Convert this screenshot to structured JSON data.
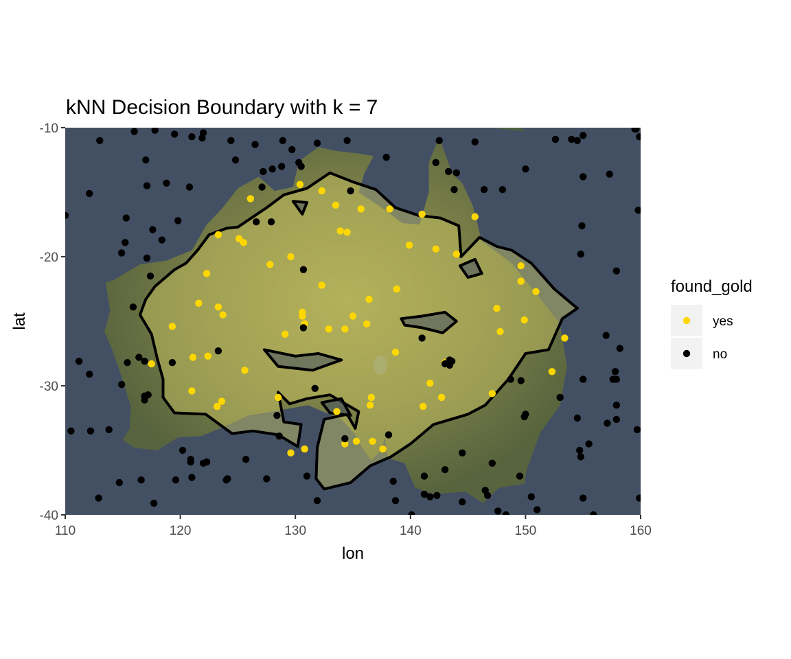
{
  "chart_data": {
    "type": "scatter",
    "title": "kNN Decision Boundary with k = 7",
    "xlabel": "lon",
    "ylabel": "lat",
    "xlim": [
      110,
      160
    ],
    "ylim": [
      -40,
      -10
    ],
    "xticks": [
      "110",
      "120",
      "130",
      "140",
      "150",
      "160"
    ],
    "yticks": [
      "-10",
      "-20",
      "-30",
      "-40"
    ],
    "legend": {
      "title": "found_gold",
      "position": "right",
      "entries": [
        {
          "label": "yes",
          "color": "#FFD700"
        },
        {
          "label": "no",
          "color": "#000000"
        }
      ]
    },
    "background_map": "satellite basemap of Australia",
    "colors": {
      "yes": "#FFD700",
      "no": "#000000",
      "ocean": "#435063",
      "boundary": "#000000"
    },
    "decision_boundary": [
      [
        125.0,
        -17.7
      ],
      [
        127.5,
        -16.2
      ],
      [
        129.0,
        -15.2
      ],
      [
        131.0,
        -14.7
      ],
      [
        133.0,
        -13.5
      ],
      [
        135.0,
        -14.2
      ],
      [
        137.0,
        -14.8
      ],
      [
        138.7,
        -16.2
      ],
      [
        140.7,
        -16.8
      ],
      [
        142.6,
        -17.0
      ],
      [
        144.2,
        -17.6
      ],
      [
        144.4,
        -20.0
      ],
      [
        146.0,
        -18.5
      ],
      [
        147.5,
        -19.2
      ],
      [
        148.8,
        -19.5
      ],
      [
        150.5,
        -20.5
      ],
      [
        152.5,
        -22.5
      ],
      [
        154.5,
        -24.0
      ],
      [
        153.2,
        -24.8
      ],
      [
        152.0,
        -27.2
      ],
      [
        150.0,
        -27.5
      ],
      [
        148.5,
        -29.5
      ],
      [
        146.5,
        -31.5
      ],
      [
        145.0,
        -32.2
      ],
      [
        143.5,
        -32.6
      ],
      [
        142.0,
        -33.0
      ],
      [
        140.0,
        -34.5
      ],
      [
        138.3,
        -35.5
      ],
      [
        136.5,
        -36.2
      ],
      [
        134.8,
        -37.5
      ],
      [
        132.5,
        -38.0
      ],
      [
        131.8,
        -37.2
      ],
      [
        131.9,
        -34.8
      ],
      [
        132.5,
        -32.6
      ],
      [
        134.5,
        -32.2
      ],
      [
        135.2,
        -33.3
      ],
      [
        135.5,
        -32.0
      ],
      [
        133.0,
        -30.7
      ],
      [
        131.0,
        -31.0
      ],
      [
        129.5,
        -31.4
      ],
      [
        128.5,
        -30.5
      ],
      [
        129.0,
        -32.8
      ],
      [
        130.5,
        -33.0
      ],
      [
        130.2,
        -34.7
      ],
      [
        128.5,
        -33.8
      ],
      [
        126.3,
        -33.5
      ],
      [
        124.5,
        -33.7
      ],
      [
        122.2,
        -32.2
      ],
      [
        119.5,
        -32.1
      ],
      [
        118.5,
        -30.9
      ],
      [
        118.5,
        -29.5
      ],
      [
        118.0,
        -27.9
      ],
      [
        117.5,
        -26.0
      ],
      [
        116.5,
        -24.5
      ],
      [
        117.0,
        -23.3
      ],
      [
        117.8,
        -22.3
      ],
      [
        119.5,
        -21.0
      ],
      [
        120.5,
        -20.5
      ],
      [
        121.5,
        -19.5
      ],
      [
        122.5,
        -18.3
      ],
      [
        124.0,
        -17.8
      ],
      [
        125.0,
        -17.7
      ]
    ],
    "boundary_islands": [
      [
        [
          139.2,
          -24.8
        ],
        [
          141.0,
          -24.6
        ],
        [
          143.0,
          -24.3
        ],
        [
          144.0,
          -25.0
        ],
        [
          142.8,
          -25.9
        ],
        [
          141.0,
          -25.5
        ],
        [
          139.5,
          -25.3
        ],
        [
          139.2,
          -24.8
        ]
      ],
      [
        [
          127.3,
          -27.2
        ],
        [
          130.0,
          -27.7
        ],
        [
          132.0,
          -27.5
        ],
        [
          134.0,
          -28.0
        ],
        [
          131.5,
          -28.8
        ],
        [
          128.5,
          -28.5
        ],
        [
          127.3,
          -27.2
        ]
      ],
      [
        [
          144.3,
          -20.7
        ],
        [
          145.6,
          -20.2
        ],
        [
          146.2,
          -21.3
        ],
        [
          145.0,
          -21.6
        ],
        [
          144.3,
          -20.7
        ]
      ],
      [
        [
          129.8,
          -15.7
        ],
        [
          131.0,
          -15.8
        ],
        [
          130.6,
          -16.7
        ],
        [
          129.8,
          -15.7
        ]
      ],
      [
        [
          132.3,
          -31.3
        ],
        [
          134.0,
          -31.0
        ],
        [
          134.8,
          -32.3
        ],
        [
          133.0,
          -32.1
        ],
        [
          132.3,
          -31.3
        ]
      ]
    ],
    "series": [
      {
        "name": "yes",
        "points": [
          [
            126.1,
            -15.5
          ],
          [
            130.4,
            -14.4
          ],
          [
            132.3,
            -14.9
          ],
          [
            133.5,
            -16.0
          ],
          [
            135.7,
            -16.3
          ],
          [
            138.2,
            -16.3
          ],
          [
            141.0,
            -16.7
          ],
          [
            145.6,
            -16.9
          ],
          [
            123.3,
            -18.3
          ],
          [
            125.1,
            -18.6
          ],
          [
            125.5,
            -18.9
          ],
          [
            133.9,
            -18.0
          ],
          [
            134.5,
            -18.1
          ],
          [
            139.9,
            -19.1
          ],
          [
            142.2,
            -19.4
          ],
          [
            144.0,
            -19.8
          ],
          [
            129.6,
            -20.0
          ],
          [
            127.8,
            -20.6
          ],
          [
            122.3,
            -21.3
          ],
          [
            149.6,
            -20.7
          ],
          [
            149.6,
            -21.9
          ],
          [
            150.9,
            -22.7
          ],
          [
            132.3,
            -22.2
          ],
          [
            136.4,
            -23.3
          ],
          [
            138.8,
            -22.5
          ],
          [
            121.6,
            -23.6
          ],
          [
            123.3,
            -23.9
          ],
          [
            123.7,
            -24.5
          ],
          [
            130.6,
            -24.3
          ],
          [
            130.6,
            -24.6
          ],
          [
            135.0,
            -24.6
          ],
          [
            147.5,
            -24.0
          ],
          [
            149.9,
            -24.9
          ],
          [
            119.3,
            -25.4
          ],
          [
            130.8,
            -25.2
          ],
          [
            132.9,
            -25.6
          ],
          [
            134.3,
            -25.6
          ],
          [
            136.2,
            -25.2
          ],
          [
            147.8,
            -25.8
          ],
          [
            129.1,
            -26.0
          ],
          [
            153.4,
            -26.3
          ],
          [
            138.7,
            -27.4
          ],
          [
            121.1,
            -27.8
          ],
          [
            122.4,
            -27.7
          ],
          [
            117.5,
            -28.3
          ],
          [
            125.6,
            -28.8
          ],
          [
            143.0,
            -28.2
          ],
          [
            143.3,
            -28.2
          ],
          [
            152.3,
            -28.9
          ],
          [
            141.7,
            -29.8
          ],
          [
            121.0,
            -30.4
          ],
          [
            128.5,
            -30.9
          ],
          [
            136.6,
            -30.9
          ],
          [
            142.7,
            -30.9
          ],
          [
            147.1,
            -30.6
          ],
          [
            123.6,
            -31.2
          ],
          [
            123.2,
            -31.6
          ],
          [
            136.5,
            -31.5
          ],
          [
            141.1,
            -31.6
          ],
          [
            133.6,
            -32.0
          ],
          [
            134.3,
            -34.5
          ],
          [
            135.3,
            -34.3
          ],
          [
            136.7,
            -34.3
          ],
          [
            137.6,
            -34.9
          ],
          [
            129.6,
            -35.2
          ],
          [
            130.8,
            -34.9
          ]
        ]
      },
      {
        "name": "no",
        "points": [
          [
            116.0,
            -10.3
          ],
          [
            117.8,
            -10.2
          ],
          [
            119.5,
            -10.5
          ],
          [
            121.0,
            -10.7
          ],
          [
            121.9,
            -10.8
          ],
          [
            122.0,
            -10.4
          ],
          [
            124.4,
            -11.0
          ],
          [
            126.5,
            -11.3
          ],
          [
            128.9,
            -11.0
          ],
          [
            129.7,
            -11.7
          ],
          [
            131.9,
            -11.2
          ],
          [
            134.5,
            -11.0
          ],
          [
            137.9,
            -12.3
          ],
          [
            142.5,
            -11.0
          ],
          [
            145.6,
            -11.1
          ],
          [
            152.6,
            -10.9
          ],
          [
            154.0,
            -10.9
          ],
          [
            154.5,
            -11.0
          ],
          [
            155.0,
            -10.6
          ],
          [
            159.5,
            -10.1
          ],
          [
            159.6,
            -10.1
          ],
          [
            159.9,
            -10.7
          ],
          [
            113.0,
            -11.0
          ],
          [
            117.0,
            -12.5
          ],
          [
            124.8,
            -12.5
          ],
          [
            127.2,
            -13.4
          ],
          [
            128.0,
            -13.2
          ],
          [
            128.8,
            -13.0
          ],
          [
            130.3,
            -12.7
          ],
          [
            130.5,
            -13.0
          ],
          [
            142.2,
            -12.7
          ],
          [
            143.3,
            -13.4
          ],
          [
            144.0,
            -13.5
          ],
          [
            150.0,
            -13.2
          ],
          [
            155.0,
            -13.8
          ],
          [
            157.3,
            -13.6
          ],
          [
            117.1,
            -14.5
          ],
          [
            118.8,
            -14.3
          ],
          [
            120.8,
            -14.6
          ],
          [
            127.1,
            -14.6
          ],
          [
            134.8,
            -14.9
          ],
          [
            143.8,
            -14.8
          ],
          [
            146.4,
            -14.8
          ],
          [
            148.0,
            -14.8
          ],
          [
            112.1,
            -15.1
          ],
          [
            110.0,
            -16.8
          ],
          [
            115.3,
            -17.0
          ],
          [
            117.6,
            -17.9
          ],
          [
            119.8,
            -17.2
          ],
          [
            126.6,
            -17.3
          ],
          [
            127.9,
            -17.3
          ],
          [
            118.4,
            -18.7
          ],
          [
            115.2,
            -18.9
          ],
          [
            114.9,
            -19.7
          ],
          [
            117.1,
            -20.1
          ],
          [
            130.7,
            -21.0
          ],
          [
            157.9,
            -21.1
          ],
          [
            154.8,
            -19.8
          ],
          [
            154.9,
            -17.6
          ],
          [
            159.8,
            -16.4
          ],
          [
            115.9,
            -23.9
          ],
          [
            117.4,
            -21.5
          ],
          [
            130.7,
            -25.5
          ],
          [
            116.4,
            -27.8
          ],
          [
            116.9,
            -28.1
          ],
          [
            119.3,
            -28.2
          ],
          [
            123.3,
            -27.3
          ],
          [
            117.2,
            -30.7
          ],
          [
            114.9,
            -29.9
          ],
          [
            111.2,
            -28.1
          ],
          [
            112.1,
            -29.1
          ],
          [
            115.4,
            -28.2
          ],
          [
            141.0,
            -26.3
          ],
          [
            143.4,
            -28.0
          ],
          [
            143.6,
            -28.1
          ],
          [
            143.4,
            -28.4
          ],
          [
            143.0,
            -28.3
          ],
          [
            153.0,
            -30.9
          ],
          [
            155.0,
            -29.5
          ],
          [
            157.6,
            -29.5
          ],
          [
            157.0,
            -26.1
          ],
          [
            158.2,
            -27.1
          ],
          [
            157.8,
            -28.9
          ],
          [
            157.9,
            -29.5
          ],
          [
            149.6,
            -29.6
          ],
          [
            148.7,
            -29.5
          ],
          [
            116.9,
            -31.1
          ],
          [
            116.9,
            -30.8
          ],
          [
            110.5,
            -33.5
          ],
          [
            112.2,
            -33.5
          ],
          [
            113.8,
            -33.4
          ],
          [
            128.4,
            -32.3
          ],
          [
            131.7,
            -30.2
          ],
          [
            150.0,
            -32.2
          ],
          [
            149.9,
            -32.4
          ],
          [
            154.5,
            -32.5
          ],
          [
            157.1,
            -32.9
          ],
          [
            157.9,
            -32.6
          ],
          [
            157.9,
            -31.5
          ],
          [
            159.7,
            -33.4
          ],
          [
            128.6,
            -33.9
          ],
          [
            134.3,
            -34.1
          ],
          [
            138.1,
            -33.8
          ],
          [
            155.5,
            -34.5
          ],
          [
            144.5,
            -35.2
          ],
          [
            147.1,
            -36.0
          ],
          [
            154.8,
            -35.5
          ],
          [
            154.7,
            -35.0
          ],
          [
            120.2,
            -35.0
          ],
          [
            120.9,
            -35.7
          ],
          [
            120.9,
            -35.9
          ],
          [
            122.0,
            -36.0
          ],
          [
            122.3,
            -35.9
          ],
          [
            125.7,
            -35.7
          ],
          [
            124.0,
            -37.3
          ],
          [
            119.6,
            -37.3
          ],
          [
            121.0,
            -37.1
          ],
          [
            127.5,
            -37.2
          ],
          [
            131.0,
            -37.0
          ],
          [
            138.5,
            -37.4
          ],
          [
            143.0,
            -36.5
          ],
          [
            141.2,
            -37.0
          ],
          [
            149.5,
            -37.0
          ],
          [
            114.7,
            -37.5
          ],
          [
            116.6,
            -37.3
          ],
          [
            124.1,
            -37.2
          ],
          [
            141.2,
            -38.4
          ],
          [
            142.3,
            -38.5
          ],
          [
            141.7,
            -38.6
          ],
          [
            146.7,
            -38.5
          ],
          [
            146.5,
            -38.1
          ],
          [
            150.5,
            -38.6
          ],
          [
            117.7,
            -39.1
          ],
          [
            112.9,
            -38.7
          ],
          [
            131.9,
            -38.9
          ],
          [
            138.7,
            -38.9
          ],
          [
            144.5,
            -39.0
          ],
          [
            151.0,
            -39.6
          ],
          [
            147.6,
            -39.7
          ],
          [
            148.3,
            -40.0
          ],
          [
            140.1,
            -40.0
          ],
          [
            155.9,
            -40.0
          ],
          [
            155.0,
            -38.7
          ],
          [
            159.9,
            -38.7
          ]
        ]
      }
    ]
  }
}
